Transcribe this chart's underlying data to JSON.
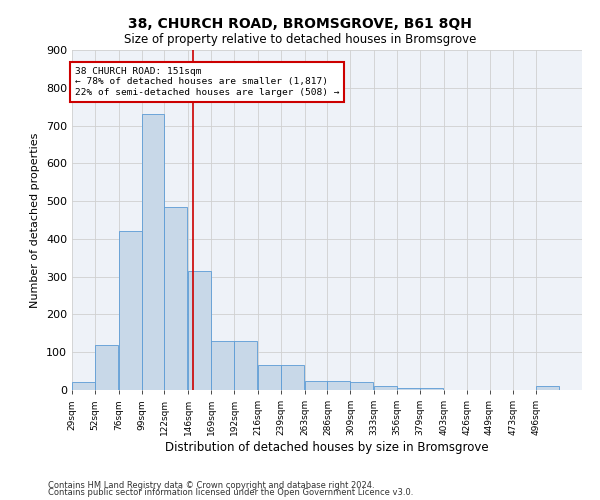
{
  "title_line1": "38, CHURCH ROAD, BROMSGROVE, B61 8QH",
  "title_line2": "Size of property relative to detached houses in Bromsgrove",
  "xlabel": "Distribution of detached houses by size in Bromsgrove",
  "ylabel": "Number of detached properties",
  "bar_values": [
    20,
    120,
    420,
    730,
    485,
    315,
    130,
    130,
    65,
    65,
    25,
    25,
    20,
    10,
    5,
    5,
    0,
    0,
    0,
    0,
    10
  ],
  "bin_edges": [
    29,
    52,
    76,
    99,
    122,
    146,
    169,
    192,
    216,
    239,
    263,
    286,
    309,
    333,
    356,
    379,
    403,
    426,
    449,
    473,
    496
  ],
  "bin_labels": [
    "29sqm",
    "52sqm",
    "76sqm",
    "99sqm",
    "122sqm",
    "146sqm",
    "169sqm",
    "192sqm",
    "216sqm",
    "239sqm",
    "263sqm",
    "286sqm",
    "309sqm",
    "333sqm",
    "356sqm",
    "379sqm",
    "403sqm",
    "426sqm",
    "449sqm",
    "473sqm",
    "496sqm"
  ],
  "bar_color": "#c8d8e8",
  "bar_edge_color": "#5b9bd5",
  "vline_x": 151,
  "vline_color": "#cc0000",
  "annotation_title": "38 CHURCH ROAD: 151sqm",
  "annotation_line1": "← 78% of detached houses are smaller (1,817)",
  "annotation_line2": "22% of semi-detached houses are larger (508) →",
  "annotation_box_color": "#ffffff",
  "annotation_box_edge": "#cc0000",
  "ylim": [
    0,
    900
  ],
  "yticks": [
    0,
    100,
    200,
    300,
    400,
    500,
    600,
    700,
    800,
    900
  ],
  "grid_color": "#d0d0d0",
  "bg_color": "#eef2f8",
  "footnote1": "Contains HM Land Registry data © Crown copyright and database right 2024.",
  "footnote2": "Contains public sector information licensed under the Open Government Licence v3.0."
}
